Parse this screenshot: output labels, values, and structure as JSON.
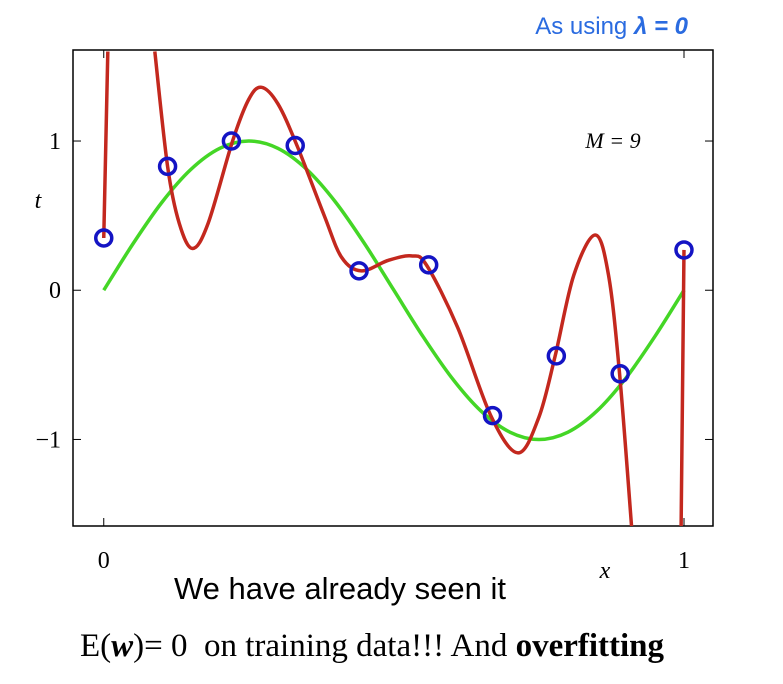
{
  "chart_data": {
    "type": "line",
    "annotation_parts": [
      "As using",
      "λ = 0"
    ],
    "model_label": "M = 9",
    "xlabel": "x",
    "ylabel": "t",
    "subtitle": "We have already seen it",
    "caption_parts": [
      "E(",
      "w",
      ")= 0  on training data!!! And ",
      "overfitting"
    ],
    "xlim": [
      -0.053,
      1.05
    ],
    "ylim": [
      -1.58,
      1.61
    ],
    "xticks": [
      0,
      1
    ],
    "yticks": [
      {
        "value": -1,
        "label": "−1"
      },
      0,
      1
    ],
    "series": [
      {
        "mark": "line",
        "color": "#44d626",
        "x": [
          0,
          0.05,
          0.1,
          0.15,
          0.2,
          0.25,
          0.3,
          0.35,
          0.4,
          0.45,
          0.5,
          0.55,
          0.6,
          0.65,
          0.7,
          0.75,
          0.8,
          0.85,
          0.9,
          0.95,
          1
        ],
        "values": [
          0,
          0.309,
          0.588,
          0.809,
          0.951,
          1,
          0.951,
          0.809,
          0.588,
          0.309,
          0,
          -0.309,
          -0.588,
          -0.809,
          -0.951,
          -1,
          -0.951,
          -0.809,
          -0.588,
          -0.309,
          0
        ]
      },
      {
        "mark": "line",
        "color": "#c3281e",
        "x": [
          0,
          0.007,
          0.05,
          0.088,
          0.11,
          0.13,
          0.153,
          0.18,
          0.222,
          0.25,
          0.272,
          0.3,
          0.333,
          0.38,
          0.41,
          0.444,
          0.49,
          0.53,
          0.556,
          0.61,
          0.667,
          0.714,
          0.75,
          0.778,
          0.81,
          0.847,
          0.87,
          0.889,
          0.91,
          0.95,
          0.995,
          1
        ],
        "values": [
          0.35,
          1.6,
          null,
          1.6,
          0.83,
          0.45,
          0.28,
          0.45,
          1.0,
          1.28,
          1.36,
          1.25,
          0.97,
          0.5,
          0.22,
          0.13,
          0.2,
          0.23,
          0.17,
          -0.25,
          -0.84,
          -1.09,
          -0.85,
          -0.44,
          0.1,
          0.37,
          0.1,
          -0.56,
          -1.6,
          null,
          -1.6,
          0.27
        ]
      },
      {
        "mark": "circle",
        "color": "#1414c4",
        "x": [
          0,
          0.11,
          0.22,
          0.33,
          0.44,
          0.56,
          0.67,
          0.78,
          0.89,
          1
        ],
        "values": [
          0.35,
          0.83,
          1.0,
          0.97,
          0.13,
          0.17,
          -0.84,
          -0.44,
          -0.56,
          0.27
        ]
      }
    ]
  }
}
